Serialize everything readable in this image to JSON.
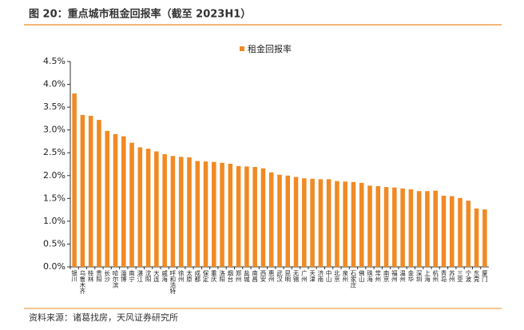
{
  "chart_data": {
    "type": "bar",
    "title": "图 20：重点城市租金回报率（截至 2023H1）",
    "source": "资料来源：诸葛找房，天风证券研究所",
    "categories": [
      "银川",
      "乌鲁木齐",
      "桂林",
      "贵阳",
      "长沙",
      "哈尔滨",
      "淄博",
      "南宁",
      "湛江",
      "沈阳",
      "大连",
      "威海",
      "呼和浩特",
      "徐州",
      "太原",
      "成都",
      "保定",
      "重庆",
      "洛阳",
      "烟台",
      "郑州",
      "盐城",
      "南昌",
      "西安",
      "惠州",
      "武汉",
      "昆明",
      "无锡",
      "广州",
      "天津",
      "济南",
      "中山",
      "北京",
      "泉州",
      "石家庄",
      "佛山",
      "珠海",
      "常州",
      "南京",
      "福州",
      "温州",
      "金华",
      "深圳",
      "上海",
      "杭州",
      "青岛",
      "苏州",
      "三亚",
      "宁波",
      "东莞",
      "厦门"
    ],
    "series": [
      {
        "name": "租金回报率",
        "color": "#f08a24",
        "values": [
          3.8,
          3.33,
          3.31,
          3.22,
          2.98,
          2.91,
          2.86,
          2.72,
          2.62,
          2.59,
          2.53,
          2.47,
          2.43,
          2.41,
          2.4,
          2.32,
          2.31,
          2.3,
          2.28,
          2.26,
          2.21,
          2.2,
          2.19,
          2.16,
          2.07,
          2.02,
          2.0,
          1.97,
          1.94,
          1.93,
          1.92,
          1.92,
          1.88,
          1.87,
          1.86,
          1.84,
          1.78,
          1.77,
          1.75,
          1.74,
          1.72,
          1.7,
          1.66,
          1.66,
          1.67,
          1.56,
          1.55,
          1.51,
          1.45,
          1.28,
          1.26
        ]
      }
    ],
    "ylim": [
      0,
      4.5
    ],
    "yticks": [
      {
        "value": 0,
        "label": "0.0%"
      },
      {
        "value": 0.5,
        "label": "0.5%"
      },
      {
        "value": 1,
        "label": "1.0%"
      },
      {
        "value": 1.5,
        "label": "1.5%"
      },
      {
        "value": 2,
        "label": "2.0%"
      },
      {
        "value": 2.5,
        "label": "2.5%"
      },
      {
        "value": 3,
        "label": "3.0%"
      },
      {
        "value": 3.5,
        "label": "3.5%"
      },
      {
        "value": 4,
        "label": "4.0%"
      },
      {
        "value": 4.5,
        "label": "4.5%"
      }
    ],
    "grid": false,
    "legend": "top"
  }
}
